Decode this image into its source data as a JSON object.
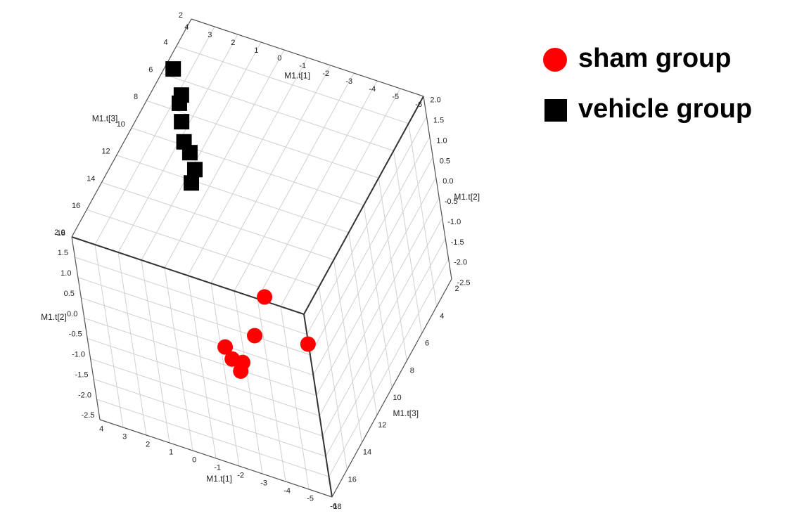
{
  "chart_data": {
    "type": "scatter3d",
    "x_label": "M1.t[1]",
    "y_label": "M1.t[2]",
    "z_label": "M1.t[3]",
    "xlim": [
      -6,
      4
    ],
    "ylim": [
      -2.5,
      2
    ],
    "zlim": [
      2,
      18
    ],
    "xticks": [
      4,
      3,
      2,
      1,
      0,
      -1,
      -2,
      -3,
      -4,
      -5,
      -6
    ],
    "yticks": [
      {
        "value": 2,
        "label": "2.0"
      },
      1.5,
      {
        "value": 1,
        "label": "1.0"
      },
      0.5,
      {
        "value": 0,
        "label": "0.0"
      },
      -0.5,
      {
        "value": -1,
        "label": "-1.0"
      },
      -1.5,
      {
        "value": -2,
        "label": "-2.0"
      },
      -2.5
    ],
    "zticks": [
      2,
      4,
      6,
      8,
      10,
      12,
      14,
      16,
      18
    ],
    "grid": true,
    "legend": "upper right",
    "series": [
      {
        "name": "sham group",
        "color": "#ff0000",
        "marker": "circle",
        "x": [
          -3.9,
          -3.18,
          -1.76,
          -2.0,
          -2.45,
          -2.3,
          -5.5
        ],
        "y": [
          1.69,
          0.6,
          0.05,
          -0.2,
          -0.2,
          -0.44,
          0.8
        ],
        "z": [
          17,
          17,
          17,
          17,
          17,
          17,
          16.9
        ]
      },
      {
        "name": "vehicle group",
        "color": "#000000",
        "marker": "square",
        "x": [
          3.87,
          3.05,
          2.96,
          2.51,
          2.02,
          1.59,
          1.07,
          0.93
        ],
        "y": [
          1.8,
          1.8,
          1.8,
          1.8,
          1.8,
          1.8,
          1.8,
          1.8
        ],
        "z": [
          5.0,
          6.45,
          7.0,
          8.1,
          9.3,
          9.85,
          10.8,
          11.7
        ]
      }
    ]
  }
}
